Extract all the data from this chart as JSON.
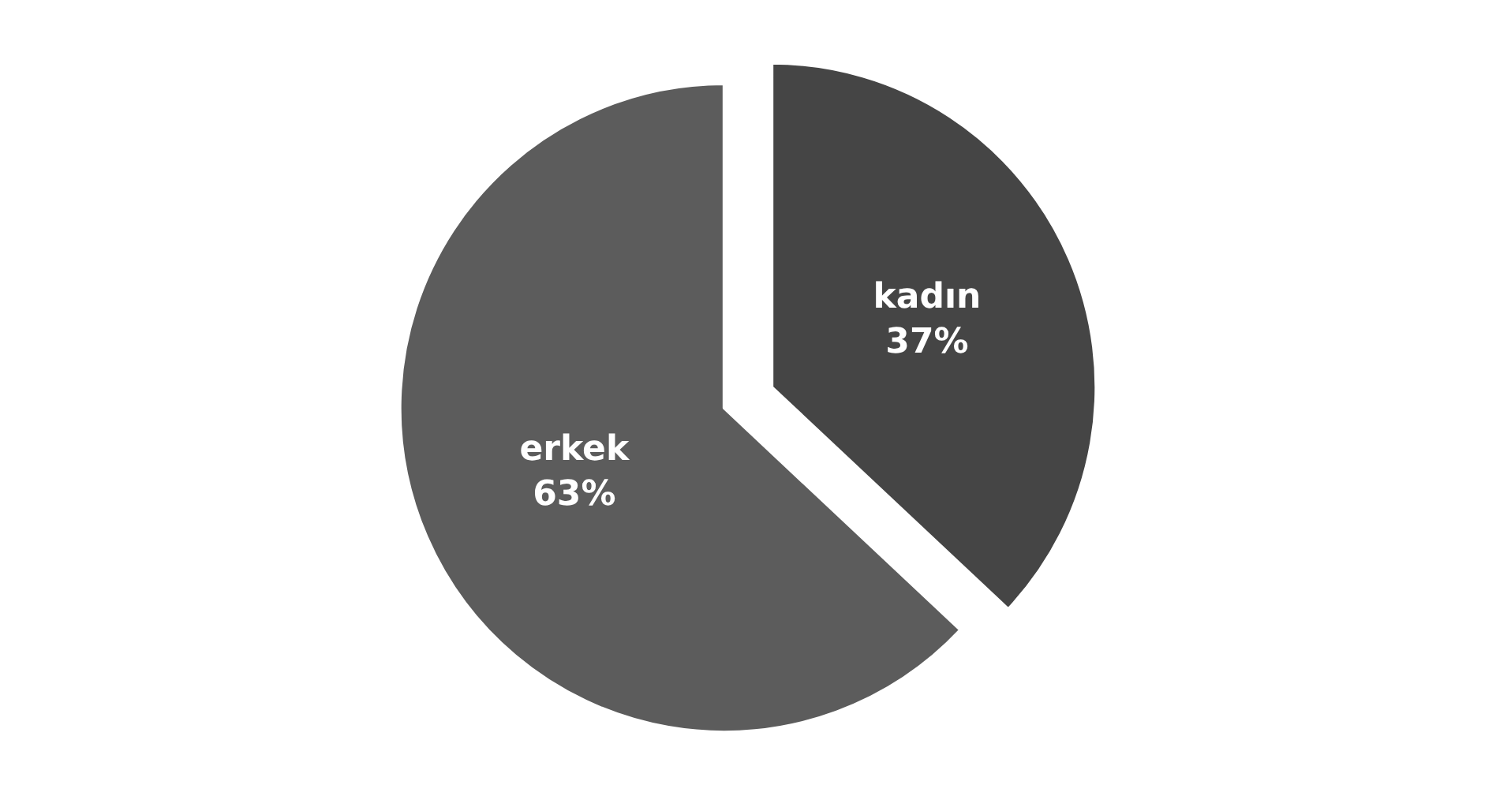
{
  "chart_data": {
    "type": "pie",
    "categories": [
      "kadın",
      "erkek"
    ],
    "values": [
      37,
      63
    ],
    "value_labels": [
      "37%",
      "63%"
    ],
    "colors": [
      "#454545",
      "#5c5c5c"
    ],
    "legend": false
  }
}
